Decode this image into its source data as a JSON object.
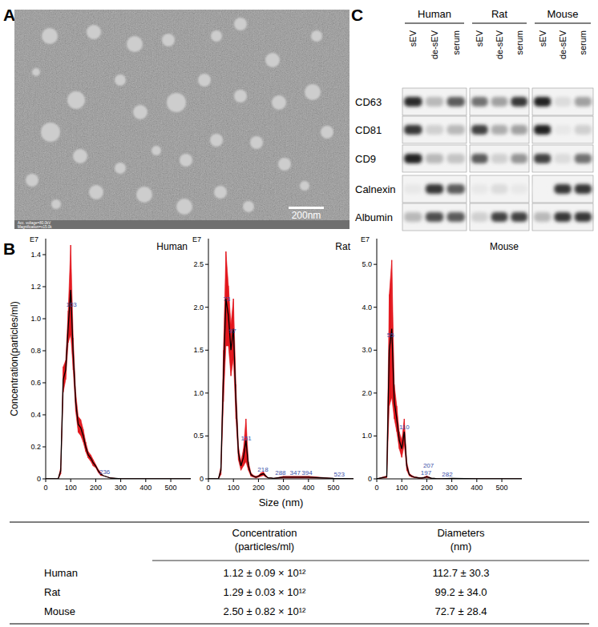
{
  "panel_labels": [
    "A",
    "B",
    "C"
  ],
  "tem": {
    "scale_bar": "200nm",
    "info": [
      "Acc. voltage=80.0kV",
      "Magnification=x15.0k"
    ]
  },
  "chart_data": [
    {
      "type": "line",
      "title": "Human",
      "y_multiplier": "E7",
      "ylabel": "Concentration(particles/ml)",
      "x": [
        0,
        40,
        50,
        60,
        70,
        80,
        90,
        100,
        110,
        120,
        130,
        140,
        150,
        160,
        170,
        180,
        190,
        200,
        210,
        220,
        230,
        240,
        250,
        260,
        300,
        400,
        500,
        580
      ],
      "series": [
        {
          "color": "#000000",
          "values": [
            0,
            0,
            0,
            0.05,
            0.62,
            0.68,
            0.95,
            1.18,
            0.78,
            0.48,
            0.34,
            0.32,
            0.27,
            0.2,
            0.15,
            0.13,
            0.1,
            0.08,
            0.05,
            0.03,
            0.02,
            0.015,
            0.01,
            0.005,
            0,
            0,
            0,
            0
          ],
          "error": [
            0,
            0,
            0,
            0.02,
            0.08,
            0.06,
            0.1,
            0.28,
            0.1,
            0.06,
            0.05,
            0.05,
            0.04,
            0.03,
            0.02,
            0.02,
            0.02,
            0.01,
            0.01,
            0.01,
            0,
            0,
            0,
            0,
            0,
            0,
            0,
            0
          ]
        }
      ],
      "xlim": [
        0,
        580
      ],
      "xticks": [
        0,
        100,
        200,
        300,
        400,
        500
      ],
      "ylim": [
        0,
        1.5
      ],
      "yticks": [
        0,
        0.2,
        0.4,
        0.6,
        0.8,
        {
          "value": 1,
          "label": "1.0"
        },
        1.2,
        1.4
      ],
      "grid": false,
      "annotations": [
        103,
        236
      ]
    },
    {
      "type": "line",
      "title": "Rat",
      "y_multiplier": "E7",
      "xlabel": "Size (nm)",
      "x": [
        0,
        40,
        50,
        60,
        70,
        80,
        90,
        100,
        110,
        120,
        130,
        140,
        150,
        160,
        170,
        180,
        190,
        200,
        210,
        220,
        230,
        240,
        250,
        260,
        300,
        400,
        500,
        580
      ],
      "series": [
        {
          "color": "#000000",
          "values": [
            0,
            0,
            0.1,
            1.2,
            2.1,
            1.9,
            1.5,
            1.75,
            0.9,
            0.3,
            0.15,
            0.25,
            0.45,
            0.15,
            0.05,
            0.03,
            0.02,
            0.03,
            0.05,
            0.06,
            0.03,
            0.01,
            0.01,
            0.005,
            0.02,
            0.02,
            0.005,
            0
          ],
          "error": [
            0,
            0,
            0.05,
            0.3,
            0.55,
            0.35,
            0.3,
            0.35,
            0.2,
            0.08,
            0.05,
            0.1,
            0.25,
            0.05,
            0.02,
            0.01,
            0.01,
            0.01,
            0.02,
            0.02,
            0.01,
            0,
            0,
            0,
            0.01,
            0.01,
            0,
            0
          ]
        }
      ],
      "xlim": [
        0,
        580
      ],
      "xticks": [
        0,
        100,
        200,
        300,
        400,
        500
      ],
      "ylim": [
        0,
        2.8
      ],
      "yticks": [
        0,
        0.5,
        {
          "value": 1,
          "label": "1.0"
        },
        1.5,
        {
          "value": 2,
          "label": "2.0"
        },
        2.5
      ],
      "grid": false,
      "annotations": [
        73,
        97,
        151,
        218,
        288,
        347,
        394,
        523
      ]
    },
    {
      "type": "line",
      "title": "Mouse",
      "y_multiplier": "E7",
      "x": [
        0,
        40,
        50,
        60,
        70,
        80,
        90,
        100,
        110,
        120,
        130,
        140,
        150,
        160,
        170,
        180,
        190,
        200,
        210,
        220,
        230,
        240,
        250,
        260,
        300,
        400,
        500,
        580
      ],
      "series": [
        {
          "color": "#000000",
          "values": [
            0,
            0.05,
            3.0,
            3.5,
            1.8,
            1.4,
            0.9,
            0.7,
            1.1,
            0.3,
            0.1,
            0.06,
            0.04,
            0.03,
            0.02,
            0.02,
            0.03,
            0.05,
            0.03,
            0.01,
            0.01,
            0,
            0,
            0,
            0.01,
            0,
            0,
            0
          ],
          "error": [
            0,
            0.02,
            1.3,
            1.6,
            0.4,
            0.3,
            0.2,
            0.2,
            0.3,
            0.1,
            0.03,
            0.02,
            0.01,
            0.01,
            0.01,
            0.01,
            0.01,
            0.02,
            0.01,
            0,
            0,
            0,
            0,
            0,
            0,
            0,
            0,
            0
          ]
        }
      ],
      "xlim": [
        0,
        580
      ],
      "xticks": [
        0,
        100,
        200,
        300,
        400,
        500
      ],
      "ylim": [
        0,
        5.6
      ],
      "yticks": [
        0,
        {
          "value": 1,
          "label": "1.0"
        },
        {
          "value": 2,
          "label": "2.0"
        },
        {
          "value": 3,
          "label": "3.0"
        },
        {
          "value": 4,
          "label": "4.0"
        },
        {
          "value": 5,
          "label": "5.0"
        }
      ],
      "grid": false,
      "annotations": [
        55,
        110,
        197,
        207,
        282
      ]
    }
  ],
  "table": {
    "columns": [
      [
        "Concentration",
        "(particles/ml)"
      ],
      [
        "Diameters",
        "(nm)"
      ]
    ],
    "rows": [
      [
        "Human",
        "1.12 ± 0.09 × 10¹²",
        "112.7 ± 30.3"
      ],
      [
        "Rat",
        "1.29 ± 0.03 × 10¹²",
        "99.2 ± 34.0"
      ],
      [
        "Mouse",
        "2.50 ± 0.82 × 10¹²",
        "72.7 ± 28.4"
      ]
    ]
  },
  "blot": {
    "groups": [
      "Human",
      "Rat",
      "Mouse"
    ],
    "lanes": [
      "sEV",
      "de-sEV",
      "serum"
    ],
    "rows": [
      {
        "label": "CD63",
        "intensity": [
          0.9,
          0.3,
          0.7,
          0.6,
          0.4,
          0.85,
          0.95,
          0.15,
          0.4
        ]
      },
      {
        "label": "CD81",
        "intensity": [
          0.85,
          0.2,
          0.3,
          0.8,
          0.35,
          0.4,
          0.95,
          0.1,
          0.2
        ]
      },
      {
        "label": "CD9",
        "intensity": [
          0.95,
          0.3,
          0.25,
          0.7,
          0.2,
          0.45,
          0.8,
          0.15,
          0.6
        ]
      },
      {
        "label": "Calnexin",
        "intensity": [
          0.1,
          0.85,
          0.7,
          0.1,
          0.15,
          0.1,
          0.05,
          0.85,
          0.85
        ]
      },
      {
        "label": "Albumin",
        "intensity": [
          0.3,
          0.75,
          0.7,
          0.2,
          0.8,
          0.8,
          0.3,
          0.85,
          0.85
        ]
      }
    ]
  }
}
